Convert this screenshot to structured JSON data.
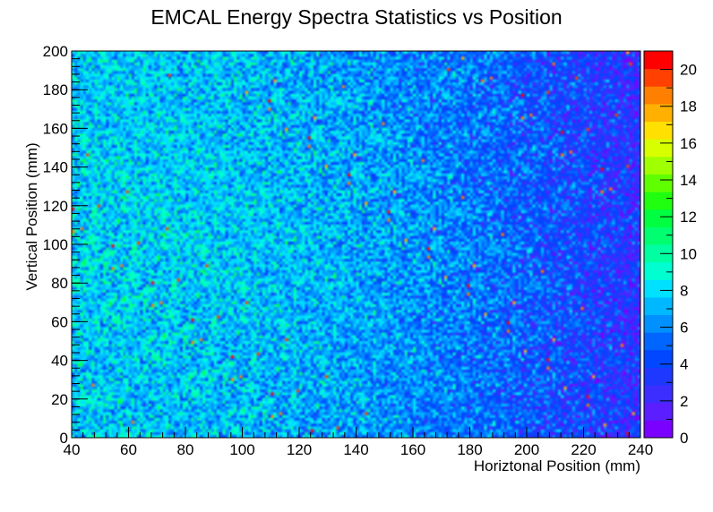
{
  "chart_data": {
    "type": "heatmap",
    "title": "EMCAL Energy Spectra Statistics vs Position",
    "xlabel": "Horiztonal Position (mm)",
    "ylabel": "Vertical Position (mm)",
    "xlim": [
      40,
      240
    ],
    "ylim": [
      0,
      200
    ],
    "zlim": [
      0,
      21
    ],
    "x_ticks": [
      "40",
      "60",
      "80",
      "100",
      "120",
      "140",
      "160",
      "180",
      "200",
      "220",
      "240"
    ],
    "y_ticks": [
      "0",
      "20",
      "40",
      "60",
      "80",
      "100",
      "120",
      "140",
      "160",
      "180",
      "200"
    ],
    "z_ticks": [
      "0",
      "2",
      "4",
      "6",
      "8",
      "10",
      "12",
      "14",
      "16",
      "18",
      "20"
    ],
    "bins": {
      "x": 200,
      "y": 136
    },
    "typical_counts": {
      "left_region": 8,
      "right_edge": 3,
      "max": 21
    },
    "palette": [
      "#7a00ff",
      "#5a1eff",
      "#3c2eff",
      "#1f38ff",
      "#0047ff",
      "#0066ff",
      "#0090ff",
      "#00b8ff",
      "#00e0ff",
      "#00ffd0",
      "#00ffa0",
      "#00ff70",
      "#00ff40",
      "#20ff10",
      "#60ff00",
      "#a0ff00",
      "#d8ff00",
      "#ffe000",
      "#ffb000",
      "#ff8000",
      "#ff4000",
      "#ff0000"
    ]
  }
}
